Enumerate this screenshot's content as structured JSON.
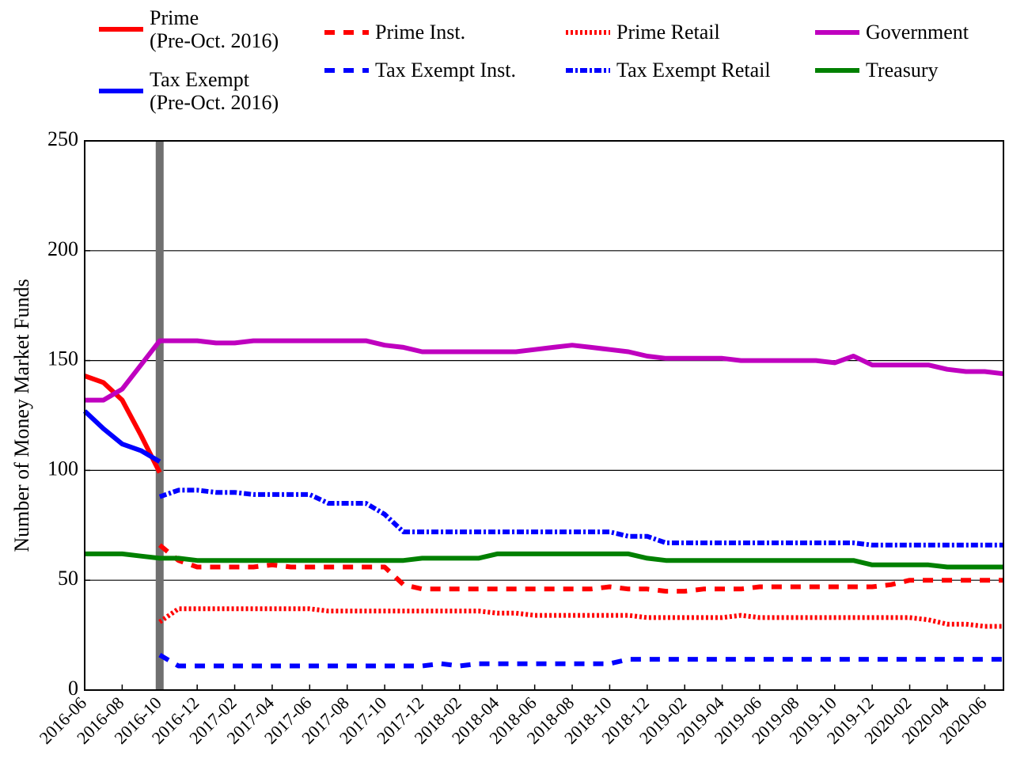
{
  "chart_data": {
    "type": "line",
    "ylabel": "Number of Money Market Funds",
    "categories": [
      "2016-06",
      null,
      "2016-08",
      null,
      "2016-10",
      null,
      "2016-12",
      null,
      "2017-02",
      null,
      "2017-04",
      null,
      "2017-06",
      null,
      "2017-08",
      null,
      "2017-10",
      null,
      "2017-12",
      null,
      "2018-02",
      null,
      "2018-04",
      null,
      "2018-06",
      null,
      "2018-08",
      null,
      "2018-10",
      null,
      "2018-12",
      null,
      "2019-02",
      null,
      "2019-04",
      null,
      "2019-06",
      null,
      "2019-08",
      null,
      "2019-10",
      null,
      "2019-12",
      null,
      "2020-02",
      null,
      "2020-04",
      null,
      "2020-06",
      null
    ],
    "ylim": [
      0,
      250
    ],
    "yticks": [
      0,
      50,
      100,
      150,
      200,
      250
    ],
    "grid": true,
    "series": [
      {
        "name": "Prime\n(Pre-Oct. 2016)",
        "color": "#ff0000",
        "linestyle": "solid",
        "values": [
          143,
          140,
          132,
          116,
          99,
          null,
          null,
          null,
          null,
          null,
          null,
          null,
          null,
          null,
          null,
          null,
          null,
          null,
          null,
          null,
          null,
          null,
          null,
          null,
          null,
          null,
          null,
          null,
          null,
          null,
          null,
          null,
          null,
          null,
          null,
          null,
          null,
          null,
          null,
          null,
          null,
          null,
          null,
          null,
          null,
          null,
          null,
          null,
          null,
          null
        ]
      },
      {
        "name": "Tax Exempt\n(Pre-Oct. 2016)",
        "color": "#0000ff",
        "linestyle": "solid",
        "values": [
          127,
          119,
          112,
          109,
          104,
          null,
          null,
          null,
          null,
          null,
          null,
          null,
          null,
          null,
          null,
          null,
          null,
          null,
          null,
          null,
          null,
          null,
          null,
          null,
          null,
          null,
          null,
          null,
          null,
          null,
          null,
          null,
          null,
          null,
          null,
          null,
          null,
          null,
          null,
          null,
          null,
          null,
          null,
          null,
          null,
          null,
          null,
          null,
          null,
          null
        ]
      },
      {
        "name": "Prime Inst.",
        "color": "#ff0000",
        "linestyle": "dashed",
        "values": [
          null,
          null,
          null,
          null,
          66,
          59,
          56,
          56,
          56,
          56,
          57,
          56,
          56,
          56,
          56,
          56,
          56,
          48,
          46,
          46,
          46,
          46,
          46,
          46,
          46,
          46,
          46,
          46,
          47,
          46,
          46,
          45,
          45,
          46,
          46,
          46,
          47,
          47,
          47,
          47,
          47,
          47,
          47,
          48,
          50,
          50,
          50,
          50,
          50,
          50
        ]
      },
      {
        "name": "Tax Exempt Inst.",
        "color": "#0000ff",
        "linestyle": "dashed",
        "values": [
          null,
          null,
          null,
          null,
          16,
          11,
          11,
          11,
          11,
          11,
          11,
          11,
          11,
          11,
          11,
          11,
          11,
          11,
          11,
          12,
          11,
          12,
          12,
          12,
          12,
          12,
          12,
          12,
          12,
          14,
          14,
          14,
          14,
          14,
          14,
          14,
          14,
          14,
          14,
          14,
          14,
          14,
          14,
          14,
          14,
          14,
          14,
          14,
          14,
          14
        ]
      },
      {
        "name": "Prime Retail",
        "color": "#ff0000",
        "linestyle": "dotted",
        "values": [
          null,
          null,
          null,
          null,
          31,
          37,
          37,
          37,
          37,
          37,
          37,
          37,
          37,
          36,
          36,
          36,
          36,
          36,
          36,
          36,
          36,
          36,
          35,
          35,
          34,
          34,
          34,
          34,
          34,
          34,
          33,
          33,
          33,
          33,
          33,
          34,
          33,
          33,
          33,
          33,
          33,
          33,
          33,
          33,
          33,
          32,
          30,
          30,
          29,
          29
        ]
      },
      {
        "name": "Tax Exempt Retail",
        "color": "#0000ff",
        "linestyle": "dashdot",
        "values": [
          null,
          null,
          null,
          null,
          88,
          91,
          91,
          90,
          90,
          89,
          89,
          89,
          89,
          85,
          85,
          85,
          80,
          72,
          72,
          72,
          72,
          72,
          72,
          72,
          72,
          72,
          72,
          72,
          72,
          70,
          70,
          67,
          67,
          67,
          67,
          67,
          67,
          67,
          67,
          67,
          67,
          67,
          66,
          66,
          66,
          66,
          66,
          66,
          66,
          66
        ]
      },
      {
        "name": "Government",
        "color": "#bf00bf",
        "linestyle": "solid",
        "values": [
          132,
          132,
          137,
          148,
          159,
          159,
          159,
          158,
          158,
          159,
          159,
          159,
          159,
          159,
          159,
          159,
          157,
          156,
          154,
          154,
          154,
          154,
          154,
          154,
          155,
          156,
          157,
          156,
          155,
          154,
          152,
          151,
          151,
          151,
          151,
          150,
          150,
          150,
          150,
          150,
          149,
          152,
          148,
          148,
          148,
          148,
          146,
          145,
          145,
          144
        ]
      },
      {
        "name": "Treasury",
        "color": "#008000",
        "linestyle": "solid",
        "values": [
          62,
          62,
          62,
          61,
          60,
          60,
          59,
          59,
          59,
          59,
          59,
          59,
          59,
          59,
          59,
          59,
          59,
          59,
          60,
          60,
          60,
          60,
          62,
          62,
          62,
          62,
          62,
          62,
          62,
          62,
          60,
          59,
          59,
          59,
          59,
          59,
          59,
          59,
          59,
          59,
          59,
          59,
          57,
          57,
          57,
          57,
          56,
          56,
          56,
          56
        ]
      }
    ]
  }
}
